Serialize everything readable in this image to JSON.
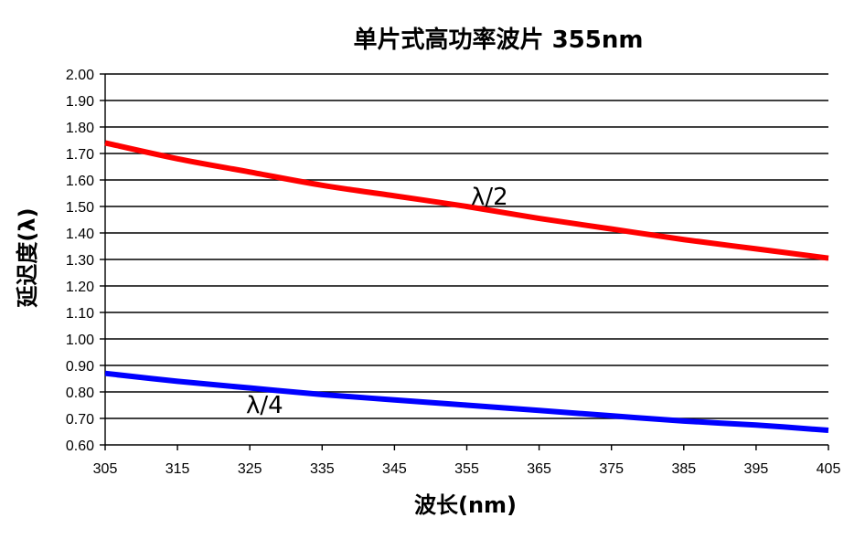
{
  "chart_data": {
    "type": "line",
    "title": "单片式高功率波片 355nm",
    "xlabel": "波长(nm)",
    "ylabel": "延迟度(λ)",
    "xlim": [
      305,
      405
    ],
    "ylim": [
      0.6,
      2.0
    ],
    "x_ticks": [
      "305",
      "315",
      "325",
      "335",
      "345",
      "355",
      "365",
      "375",
      "385",
      "395",
      "405"
    ],
    "y_ticks": [
      "2.00",
      "1.90",
      "1.80",
      "1.70",
      "1.60",
      "1.50",
      "1.40",
      "1.30",
      "1.20",
      "1.10",
      "1.00",
      "0.90",
      "0.80",
      "0.70",
      "0.60"
    ],
    "grid": "horizontal",
    "legend": "none",
    "series": [
      {
        "name": "λ/2",
        "color": "#ff0000",
        "x": [
          305,
          315,
          325,
          335,
          345,
          355,
          365,
          375,
          385,
          395,
          405
        ],
        "values": [
          1.74,
          1.68,
          1.63,
          1.58,
          1.54,
          1.5,
          1.455,
          1.415,
          1.375,
          1.34,
          1.305
        ]
      },
      {
        "name": "λ/4",
        "color": "#0000ff",
        "x": [
          305,
          315,
          325,
          335,
          345,
          355,
          365,
          375,
          385,
          395,
          405
        ],
        "values": [
          0.87,
          0.84,
          0.815,
          0.79,
          0.77,
          0.75,
          0.73,
          0.71,
          0.69,
          0.675,
          0.655
        ]
      }
    ]
  }
}
